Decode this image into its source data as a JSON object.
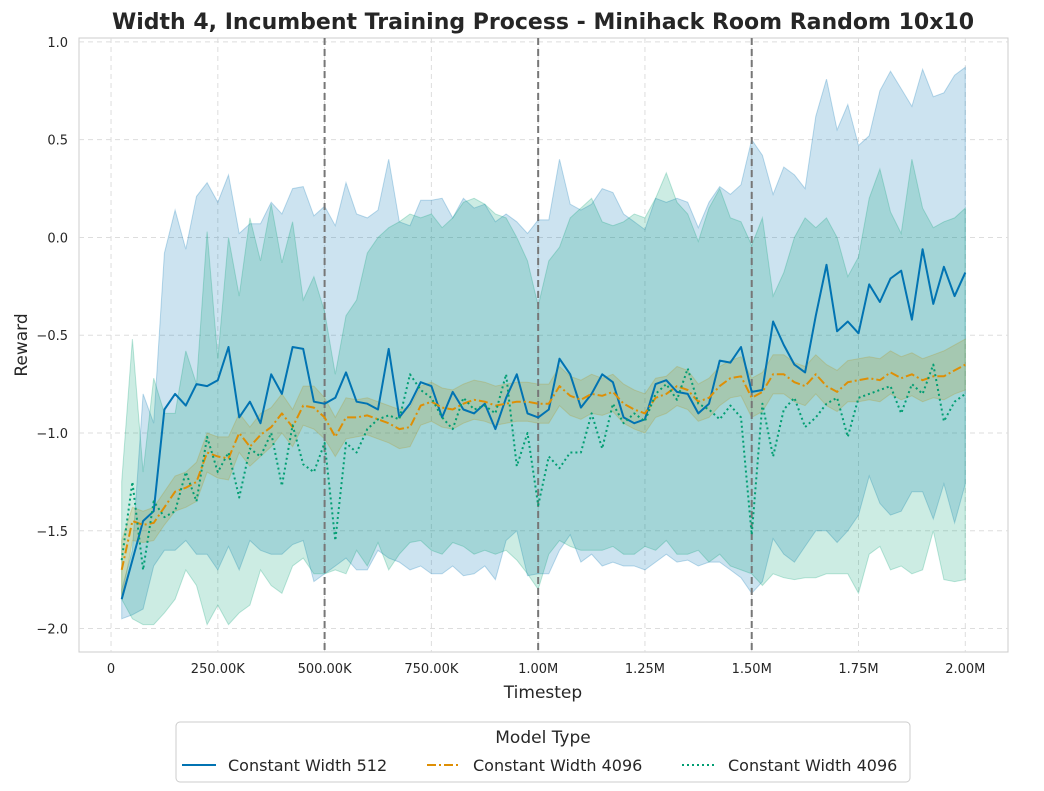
{
  "chart_data": {
    "type": "line",
    "title": "Width 4, Incumbent Training Process - Minihack Room Random 10x10",
    "xlabel": "Timestep",
    "ylabel": "Reward",
    "xlim": [
      -75000,
      2100000
    ],
    "ylim": [
      -2.12,
      1.02
    ],
    "grid": true,
    "x_ticks": [
      0,
      250000,
      500000,
      750000,
      1000000,
      1250000,
      1500000,
      1750000,
      2000000
    ],
    "x_tick_labels": [
      "0",
      "250.00K",
      "500.00K",
      "750.00K",
      "1.00M",
      "1.25M",
      "1.50M",
      "1.75M",
      "2.00M"
    ],
    "y_ticks": [
      -2.0,
      -1.5,
      -1.0,
      -0.5,
      0.0,
      0.5,
      1.0
    ],
    "y_tick_labels": [
      "−2.0",
      "−1.5",
      "−1.0",
      "−0.5",
      "0.0",
      "0.5",
      "1.0"
    ],
    "vlines": [
      500000,
      1000000,
      1500000
    ],
    "x_start": 25000,
    "x_step": 25000,
    "legend": {
      "title": "Model Type",
      "placement": "bottom-center, below plot"
    },
    "series": [
      {
        "name": "Constant Width 512",
        "color": "#0173b2",
        "style": "solid",
        "values": [
          -1.85,
          -1.65,
          -1.45,
          -1.4,
          -0.88,
          -0.8,
          -0.86,
          -0.75,
          -0.76,
          -0.73,
          -0.56,
          -0.92,
          -0.84,
          -0.95,
          -0.7,
          -0.8,
          -0.56,
          -0.57,
          -0.84,
          -0.85,
          -0.82,
          -0.69,
          -0.84,
          -0.85,
          -0.88,
          -0.57,
          -0.92,
          -0.85,
          -0.74,
          -0.76,
          -0.92,
          -0.79,
          -0.88,
          -0.9,
          -0.85,
          -0.98,
          -0.82,
          -0.7,
          -0.9,
          -0.92,
          -0.88,
          -0.62,
          -0.7,
          -0.87,
          -0.8,
          -0.7,
          -0.74,
          -0.92,
          -0.95,
          -0.93,
          -0.75,
          -0.73,
          -0.79,
          -0.8,
          -0.9,
          -0.85,
          -0.63,
          -0.64,
          -0.56,
          -0.79,
          -0.78,
          -0.43,
          -0.55,
          -0.65,
          -0.69,
          -0.4,
          -0.14,
          -0.48,
          -0.43,
          -0.49,
          -0.24,
          -0.33,
          -0.21,
          -0.17,
          -0.42,
          -0.06,
          -0.34,
          -0.15,
          -0.3,
          -0.18
        ],
        "upper": [
          -1.8,
          -1.6,
          -0.8,
          -0.95,
          -0.08,
          0.14,
          -0.06,
          0.21,
          0.28,
          0.18,
          0.32,
          0.02,
          0.07,
          0.07,
          0.18,
          0.12,
          0.25,
          0.26,
          0.11,
          0.16,
          0.06,
          0.28,
          0.12,
          0.1,
          0.14,
          0.4,
          0.08,
          0.06,
          0.19,
          0.19,
          0.2,
          0.1,
          0.2,
          0.15,
          0.17,
          0.08,
          0.12,
          0.08,
          0.02,
          0.09,
          0.09,
          0.4,
          0.17,
          0.14,
          0.17,
          0.25,
          0.23,
          0.12,
          0.08,
          0.04,
          0.2,
          0.18,
          0.2,
          0.18,
          0.05,
          0.18,
          0.26,
          0.22,
          0.27,
          0.5,
          0.42,
          0.22,
          0.36,
          0.32,
          0.25,
          0.62,
          0.81,
          0.55,
          0.68,
          0.47,
          0.52,
          0.75,
          0.85,
          0.76,
          0.67,
          0.86,
          0.72,
          0.74,
          0.83,
          0.87
        ],
        "lower": [
          -1.95,
          -1.93,
          -1.9,
          -1.68,
          -1.6,
          -1.6,
          -1.55,
          -1.62,
          -1.62,
          -1.7,
          -1.58,
          -1.7,
          -1.55,
          -1.6,
          -1.62,
          -1.62,
          -1.57,
          -1.55,
          -1.76,
          -1.72,
          -1.68,
          -1.64,
          -1.7,
          -1.7,
          -1.6,
          -1.64,
          -1.66,
          -1.7,
          -1.68,
          -1.72,
          -1.72,
          -1.68,
          -1.73,
          -1.72,
          -1.68,
          -1.75,
          -1.55,
          -1.5,
          -1.73,
          -1.72,
          -1.72,
          -1.6,
          -1.52,
          -1.66,
          -1.62,
          -1.68,
          -1.66,
          -1.68,
          -1.68,
          -1.7,
          -1.66,
          -1.62,
          -1.66,
          -1.65,
          -1.68,
          -1.66,
          -1.66,
          -1.7,
          -1.74,
          -1.82,
          -1.76,
          -1.54,
          -1.62,
          -1.66,
          -1.58,
          -1.5,
          -1.5,
          -1.56,
          -1.5,
          -1.42,
          -1.22,
          -1.36,
          -1.42,
          -1.4,
          -1.3,
          -1.3,
          -1.44,
          -1.26,
          -1.46,
          -1.26
        ]
      },
      {
        "name": "Constant Width 4096",
        "color": "#de8f05",
        "style": "dashdot",
        "values": [
          -1.7,
          -1.45,
          -1.47,
          -1.46,
          -1.38,
          -1.3,
          -1.28,
          -1.25,
          -1.1,
          -1.12,
          -1.13,
          -1.0,
          -1.07,
          -1.01,
          -0.97,
          -0.9,
          -0.97,
          -0.86,
          -0.87,
          -0.92,
          -1.02,
          -0.92,
          -0.92,
          -0.91,
          -0.93,
          -0.95,
          -0.98,
          -0.97,
          -0.86,
          -0.84,
          -0.87,
          -0.88,
          -0.85,
          -0.83,
          -0.84,
          -0.86,
          -0.85,
          -0.84,
          -0.84,
          -0.85,
          -0.85,
          -0.76,
          -0.81,
          -0.83,
          -0.8,
          -0.81,
          -0.79,
          -0.85,
          -0.88,
          -0.9,
          -0.82,
          -0.8,
          -0.76,
          -0.78,
          -0.84,
          -0.82,
          -0.76,
          -0.72,
          -0.71,
          -0.82,
          -0.79,
          -0.7,
          -0.7,
          -0.74,
          -0.76,
          -0.7,
          -0.76,
          -0.79,
          -0.74,
          -0.73,
          -0.72,
          -0.73,
          -0.69,
          -0.72,
          -0.7,
          -0.73,
          -0.71,
          -0.71,
          -0.68,
          -0.65
        ],
        "upper": [
          -1.55,
          -1.38,
          -1.4,
          -1.38,
          -1.3,
          -1.22,
          -1.2,
          -1.15,
          -1.0,
          -1.02,
          -1.02,
          -0.9,
          -0.97,
          -0.9,
          -0.87,
          -0.8,
          -0.88,
          -0.76,
          -0.76,
          -0.82,
          -0.92,
          -0.82,
          -0.83,
          -0.82,
          -0.84,
          -0.86,
          -0.88,
          -0.87,
          -0.76,
          -0.74,
          -0.77,
          -0.78,
          -0.75,
          -0.73,
          -0.74,
          -0.76,
          -0.75,
          -0.74,
          -0.74,
          -0.75,
          -0.75,
          -0.66,
          -0.71,
          -0.73,
          -0.7,
          -0.72,
          -0.7,
          -0.75,
          -0.78,
          -0.8,
          -0.72,
          -0.71,
          -0.66,
          -0.68,
          -0.75,
          -0.72,
          -0.66,
          -0.63,
          -0.61,
          -0.72,
          -0.69,
          -0.6,
          -0.6,
          -0.64,
          -0.66,
          -0.6,
          -0.65,
          -0.68,
          -0.63,
          -0.62,
          -0.61,
          -0.62,
          -0.58,
          -0.61,
          -0.59,
          -0.62,
          -0.6,
          -0.58,
          -0.55,
          -0.52
        ],
        "lower": [
          -1.85,
          -1.55,
          -1.56,
          -1.55,
          -1.47,
          -1.4,
          -1.38,
          -1.35,
          -1.2,
          -1.23,
          -1.24,
          -1.1,
          -1.17,
          -1.12,
          -1.07,
          -1.0,
          -1.07,
          -0.96,
          -0.98,
          -1.03,
          -1.12,
          -1.03,
          -1.02,
          -1.01,
          -1.03,
          -1.05,
          -1.08,
          -1.07,
          -0.96,
          -0.94,
          -0.97,
          -0.98,
          -0.95,
          -0.93,
          -0.94,
          -0.96,
          -0.95,
          -0.94,
          -0.94,
          -0.95,
          -0.95,
          -0.86,
          -0.91,
          -0.93,
          -0.9,
          -0.91,
          -0.89,
          -0.95,
          -0.98,
          -1.0,
          -0.92,
          -0.9,
          -0.86,
          -0.88,
          -0.94,
          -0.92,
          -0.86,
          -0.82,
          -0.81,
          -0.92,
          -0.89,
          -0.8,
          -0.8,
          -0.84,
          -0.86,
          -0.8,
          -0.86,
          -0.89,
          -0.84,
          -0.84,
          -0.83,
          -0.84,
          -0.8,
          -0.83,
          -0.81,
          -0.84,
          -0.82,
          -0.83,
          -0.8,
          -0.78
        ]
      },
      {
        "name": "Constant Width 4096",
        "color": "#029e73",
        "style": "dotted",
        "values": [
          -1.65,
          -1.25,
          -1.7,
          -1.35,
          -1.43,
          -1.4,
          -1.2,
          -1.35,
          -1.02,
          -1.2,
          -1.1,
          -1.33,
          -1.08,
          -1.12,
          -1.0,
          -1.27,
          -0.96,
          -1.16,
          -1.2,
          -1.05,
          -1.55,
          -1.05,
          -1.1,
          -0.98,
          -0.93,
          -0.91,
          -0.93,
          -0.7,
          -0.78,
          -0.82,
          -0.92,
          -0.98,
          -0.82,
          -0.88,
          -0.86,
          -0.9,
          -0.7,
          -1.17,
          -1.0,
          -1.37,
          -1.12,
          -1.18,
          -1.1,
          -1.1,
          -0.9,
          -1.08,
          -0.85,
          -0.95,
          -0.9,
          -0.94,
          -0.8,
          -0.75,
          -0.83,
          -0.67,
          -0.85,
          -0.88,
          -0.93,
          -0.86,
          -0.92,
          -1.52,
          -0.85,
          -1.12,
          -0.88,
          -0.82,
          -0.97,
          -0.92,
          -0.85,
          -0.82,
          -1.02,
          -0.82,
          -0.8,
          -0.78,
          -0.76,
          -0.9,
          -0.75,
          -0.8,
          -0.65,
          -0.94,
          -0.84,
          -0.8
        ],
        "upper": [
          -1.25,
          -0.52,
          -1.2,
          -0.72,
          -0.9,
          -0.9,
          -0.58,
          -0.75,
          0.03,
          -0.62,
          0.0,
          -0.3,
          0.1,
          -0.12,
          0.17,
          -0.13,
          0.08,
          -0.32,
          -0.2,
          -0.38,
          -0.7,
          -0.4,
          -0.32,
          -0.08,
          0.0,
          0.05,
          0.08,
          0.12,
          0.1,
          0.12,
          0.05,
          0.1,
          0.18,
          0.2,
          0.17,
          0.12,
          0.1,
          0.0,
          -0.12,
          -0.35,
          -0.12,
          -0.05,
          0.1,
          0.15,
          0.2,
          0.08,
          0.06,
          0.08,
          0.12,
          0.1,
          0.2,
          0.33,
          0.18,
          0.12,
          -0.02,
          0.15,
          0.25,
          0.1,
          0.08,
          -0.04,
          0.1,
          -0.3,
          -0.18,
          0.0,
          0.1,
          0.05,
          0.1,
          0.0,
          -0.2,
          -0.1,
          0.2,
          0.35,
          0.13,
          0.02,
          0.4,
          0.15,
          0.05,
          0.08,
          0.1,
          0.15
        ],
        "lower": [
          -1.85,
          -1.95,
          -1.98,
          -1.98,
          -1.92,
          -1.85,
          -1.7,
          -1.78,
          -1.98,
          -1.88,
          -1.98,
          -1.92,
          -1.88,
          -1.7,
          -1.78,
          -1.82,
          -1.68,
          -1.64,
          -1.72,
          -1.72,
          -1.7,
          -1.72,
          -1.6,
          -1.68,
          -1.56,
          -1.7,
          -1.62,
          -1.56,
          -1.55,
          -1.6,
          -1.62,
          -1.56,
          -1.58,
          -1.62,
          -1.6,
          -1.62,
          -1.6,
          -1.65,
          -1.72,
          -1.8,
          -1.62,
          -1.55,
          -1.58,
          -1.6,
          -1.6,
          -1.6,
          -1.58,
          -1.62,
          -1.62,
          -1.58,
          -1.6,
          -1.55,
          -1.62,
          -1.62,
          -1.6,
          -1.66,
          -1.62,
          -1.68,
          -1.7,
          -1.72,
          -1.78,
          -1.72,
          -1.74,
          -1.75,
          -1.74,
          -1.74,
          -1.72,
          -1.72,
          -1.72,
          -1.82,
          -1.62,
          -1.58,
          -1.7,
          -1.68,
          -1.72,
          -1.7,
          -1.5,
          -1.75,
          -1.76,
          -1.75
        ]
      }
    ]
  }
}
